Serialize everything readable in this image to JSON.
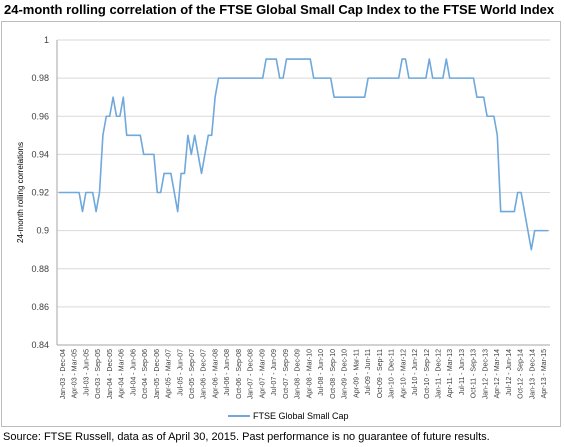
{
  "chart_title": "24-month rolling correlation of the FTSE Global Small Cap Index to the FTSE World Index",
  "source_note": "Source: FTSE Russell, data as of April 30, 2015. Past performance is no guarantee of future results.",
  "chart_data": {
    "type": "line",
    "title": "24-month rolling correlation of the FTSE Global Small Cap Index to the FTSE World Index",
    "xlabel": "",
    "ylabel": "24-month rolling correlations",
    "ylim": [
      0.84,
      1.0
    ],
    "yticks": [
      "0.84",
      "0.86",
      "0.88",
      "0.9",
      "0.92",
      "0.94",
      "0.96",
      "0.98",
      "1"
    ],
    "grid": true,
    "legend_position": "bottom",
    "color": "#6fa8dc",
    "x_tick_labels": [
      "Jan-03 - Dec-04",
      "Apr-03 - Mar-05",
      "Jul-03 - Jun-05",
      "Oct-03 - Sep-05",
      "Jan-04 - Dec-05",
      "Apr-04 - Mar-06",
      "Jul-04 - Jun-06",
      "Oct-04 - Sep-06",
      "Jan-05 - Dec-06",
      "Apr-05 - Mar-07",
      "Jul-05 - Jun-07",
      "Oct-05 - Sep-07",
      "Jan-06 - Dec-07",
      "Apr-06 - Mar-08",
      "Jul-06 - Jun-08",
      "Oct-06 - Sep-08",
      "Jan-07 - Dec-08",
      "Apr-07 - Mar-09",
      "Jul-07 - Jun-09",
      "Oct-07 - Sep-09",
      "Jan-08 - Dec-09",
      "Apr-08 - Mar-10",
      "Jul-08 - Jun-10",
      "Oct-08 - Sep-10",
      "Jan-09 - Dec-10",
      "Apr-09 - Mar-11",
      "Jul-09 - Jun-11",
      "Oct-09 - Sep-11",
      "Jan-10 - Dec-11",
      "Apr-10 - Mar-12",
      "Jul-10 - Jun-12",
      "Oct-10 - Sep-12",
      "Jan-11 - Dec-12",
      "Apr-11 - Mar-13",
      "Jul-11 - Jun-13",
      "Oct-11 - Sep-13",
      "Jan-12 - Dec-13",
      "Apr-12 - Mar-14",
      "Jul-12 - Jun-14",
      "Oct-12 - Sep-14",
      "Jan-13 - Dec-14",
      "Apr-13 - Mar-15"
    ],
    "series": [
      {
        "name": "FTSE Global Small Cap",
        "values": [
          0.92,
          0.92,
          0.92,
          0.92,
          0.92,
          0.92,
          0.92,
          0.91,
          0.92,
          0.92,
          0.92,
          0.91,
          0.92,
          0.95,
          0.96,
          0.96,
          0.97,
          0.96,
          0.96,
          0.97,
          0.95,
          0.95,
          0.95,
          0.95,
          0.95,
          0.94,
          0.94,
          0.94,
          0.94,
          0.92,
          0.92,
          0.93,
          0.93,
          0.93,
          0.92,
          0.91,
          0.93,
          0.93,
          0.95,
          0.94,
          0.95,
          0.94,
          0.93,
          0.94,
          0.95,
          0.95,
          0.97,
          0.98,
          0.98,
          0.98,
          0.98,
          0.98,
          0.98,
          0.98,
          0.98,
          0.98,
          0.98,
          0.98,
          0.98,
          0.98,
          0.98,
          0.99,
          0.99,
          0.99,
          0.99,
          0.98,
          0.98,
          0.99,
          0.99,
          0.99,
          0.99,
          0.99,
          0.99,
          0.99,
          0.99,
          0.98,
          0.98,
          0.98,
          0.98,
          0.98,
          0.98,
          0.97,
          0.97,
          0.97,
          0.97,
          0.97,
          0.97,
          0.97,
          0.97,
          0.97,
          0.97,
          0.98,
          0.98,
          0.98,
          0.98,
          0.98,
          0.98,
          0.98,
          0.98,
          0.98,
          0.98,
          0.99,
          0.99,
          0.98,
          0.98,
          0.98,
          0.98,
          0.98,
          0.98,
          0.99,
          0.98,
          0.98,
          0.98,
          0.98,
          0.99,
          0.98,
          0.98,
          0.98,
          0.98,
          0.98,
          0.98,
          0.98,
          0.98,
          0.97,
          0.97,
          0.97,
          0.96,
          0.96,
          0.96,
          0.95,
          0.91,
          0.91,
          0.91,
          0.91,
          0.91,
          0.92,
          0.92,
          0.91,
          0.9,
          0.89,
          0.9,
          0.9,
          0.9,
          0.9,
          0.9
        ]
      }
    ]
  }
}
